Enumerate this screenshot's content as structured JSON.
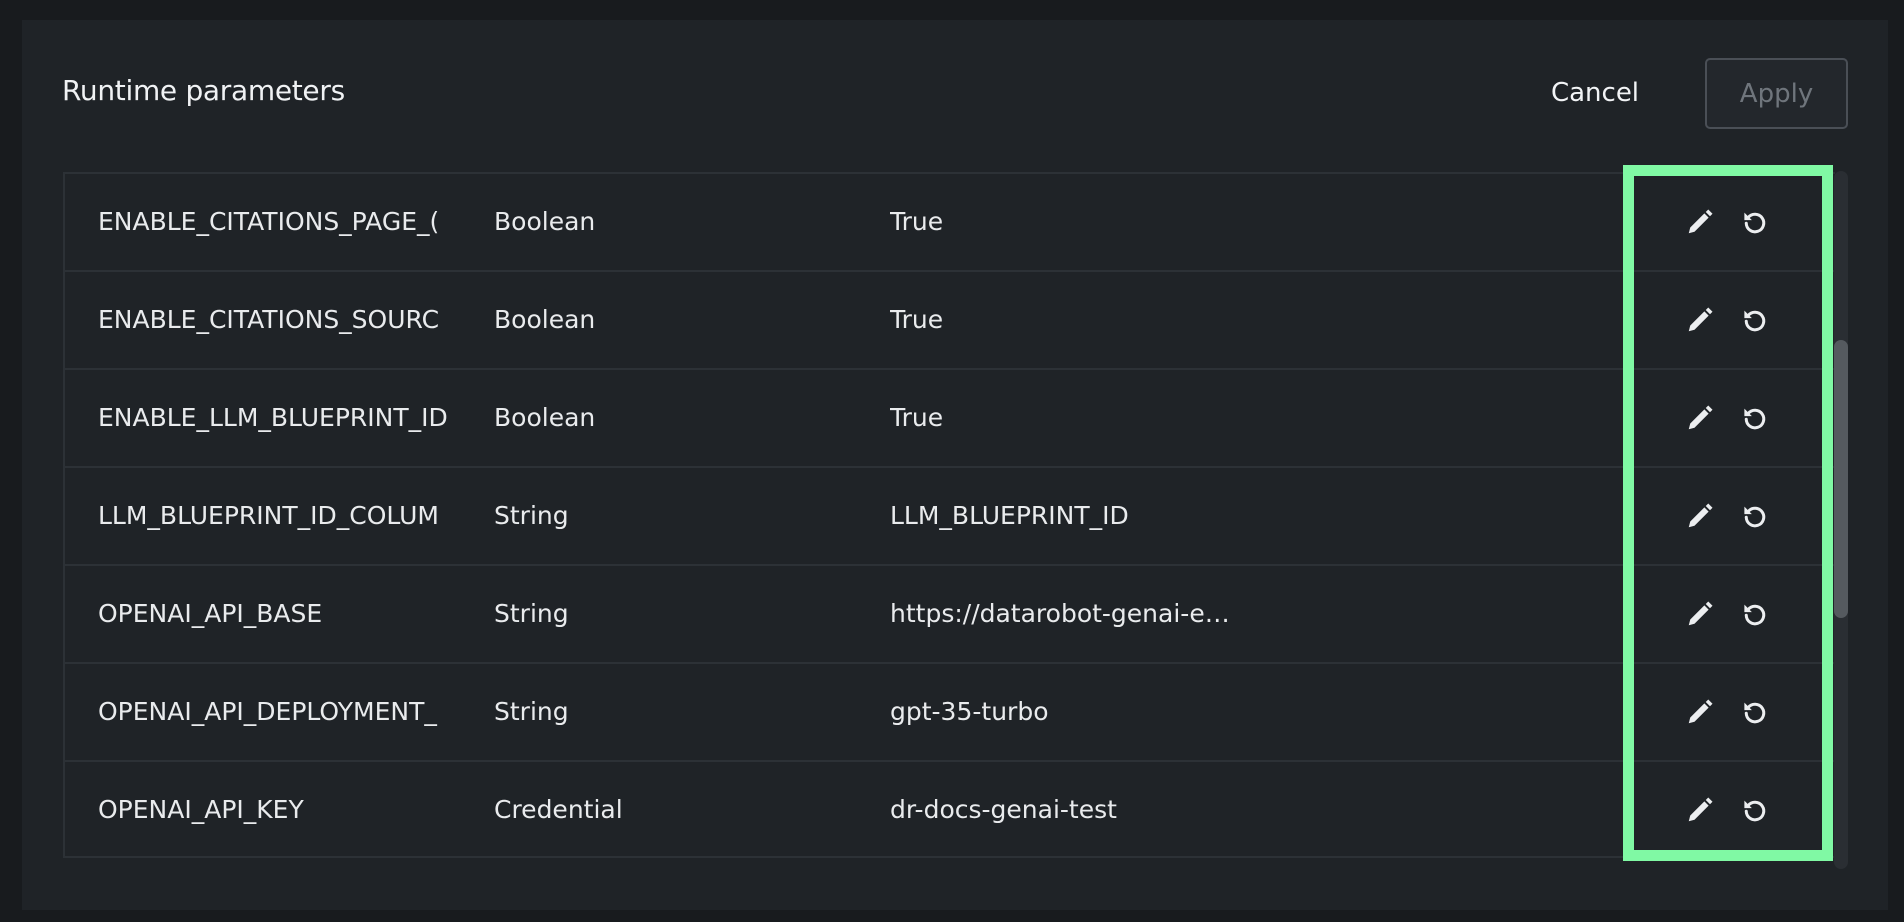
{
  "dialog": {
    "title": "Runtime parameters",
    "cancel_label": "Cancel",
    "apply_label": "Apply",
    "highlight_color": "#80f9a4"
  },
  "rows": [
    {
      "name": "ENABLE_CITATIONS_PAGE_(",
      "type": "Boolean",
      "value": "True"
    },
    {
      "name": "ENABLE_CITATIONS_SOURC",
      "type": "Boolean",
      "value": "True"
    },
    {
      "name": "ENABLE_LLM_BLUEPRINT_ID",
      "type": "Boolean",
      "value": "True"
    },
    {
      "name": "LLM_BLUEPRINT_ID_COLUM",
      "type": "String",
      "value": "LLM_BLUEPRINT_ID"
    },
    {
      "name": "OPENAI_API_BASE",
      "type": "String",
      "value": "https://datarobot-genai-e…"
    },
    {
      "name": "OPENAI_API_DEPLOYMENT_",
      "type": "String",
      "value": "gpt-35-turbo"
    },
    {
      "name": "OPENAI_API_KEY",
      "type": "Credential",
      "value": "dr-docs-genai-test"
    }
  ],
  "row_icons": [
    "pencil-icon",
    "reset-icon"
  ]
}
